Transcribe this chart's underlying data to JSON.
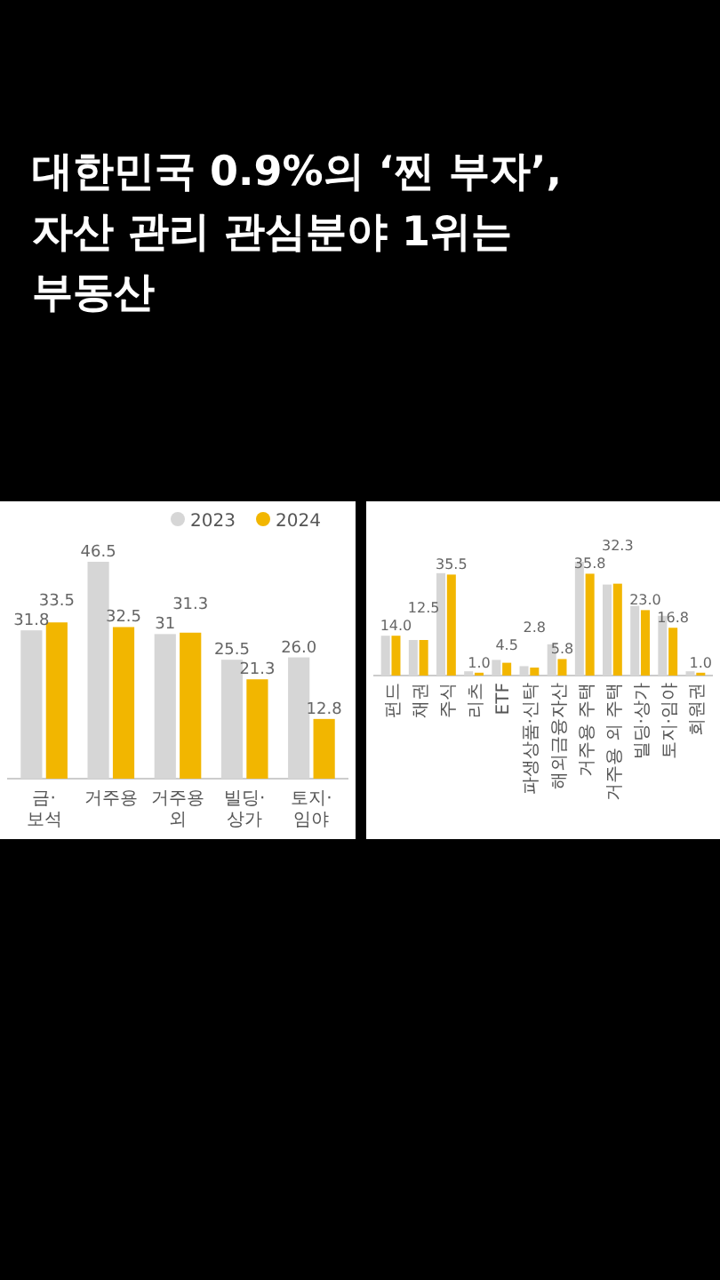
{
  "chart_data": [
    {
      "type": "bar",
      "title": "대한민국 0.9%의 ‘찐 부자’,\n자산 관리 관심분야 1위는\n부동산",
      "categories": [
        "금·보석",
        "거주용",
        "거주용 외",
        "빌딩·상가",
        "토지·임야"
      ],
      "legend": "top right",
      "series": [
        {
          "name": "2023",
          "color": "#d6d6d6",
          "values": [
            31.8,
            46.5,
            31,
            25.5,
            26.0
          ],
          "value_labels": [
            "31.8",
            "46.5",
            "31",
            "25.5",
            "26.0"
          ]
        },
        {
          "name": "2024",
          "color": "#f2b600",
          "values": [
            33.5,
            32.5,
            31.3,
            21.3,
            12.8
          ],
          "value_labels": [
            "33.5",
            "32.5",
            "31.3",
            "21.3",
            "12.8"
          ]
        }
      ]
    },
    {
      "type": "bar",
      "categories": [
        "펀드",
        "채권",
        "주식",
        "리츠",
        "ETF",
        "파생상품·신탁",
        "해외금융자산",
        "거주용 주택",
        "거주용 외 주택",
        "빌딩·상가",
        "토지·임야",
        "회원권"
      ],
      "series": [
        {
          "color": "#d6d6d6",
          "values": [
            14.0,
            12.5,
            36.0,
            1.5,
            5.5,
            3.3,
            11.0,
            40.0,
            32.0,
            24.5,
            21.0,
            1.5
          ]
        },
        {
          "color": "#f2b600",
          "values": [
            14.0,
            12.5,
            35.5,
            1.0,
            4.5,
            2.8,
            5.8,
            35.8,
            32.3,
            23.0,
            16.8,
            1.0
          ],
          "value_labels": [
            "14.0",
            "12.5",
            "35.5",
            "1.0",
            "4.5",
            "2.8",
            "5.8",
            "35.8",
            "32.3",
            "23.0",
            "16.8",
            "1.0"
          ]
        }
      ]
    }
  ]
}
